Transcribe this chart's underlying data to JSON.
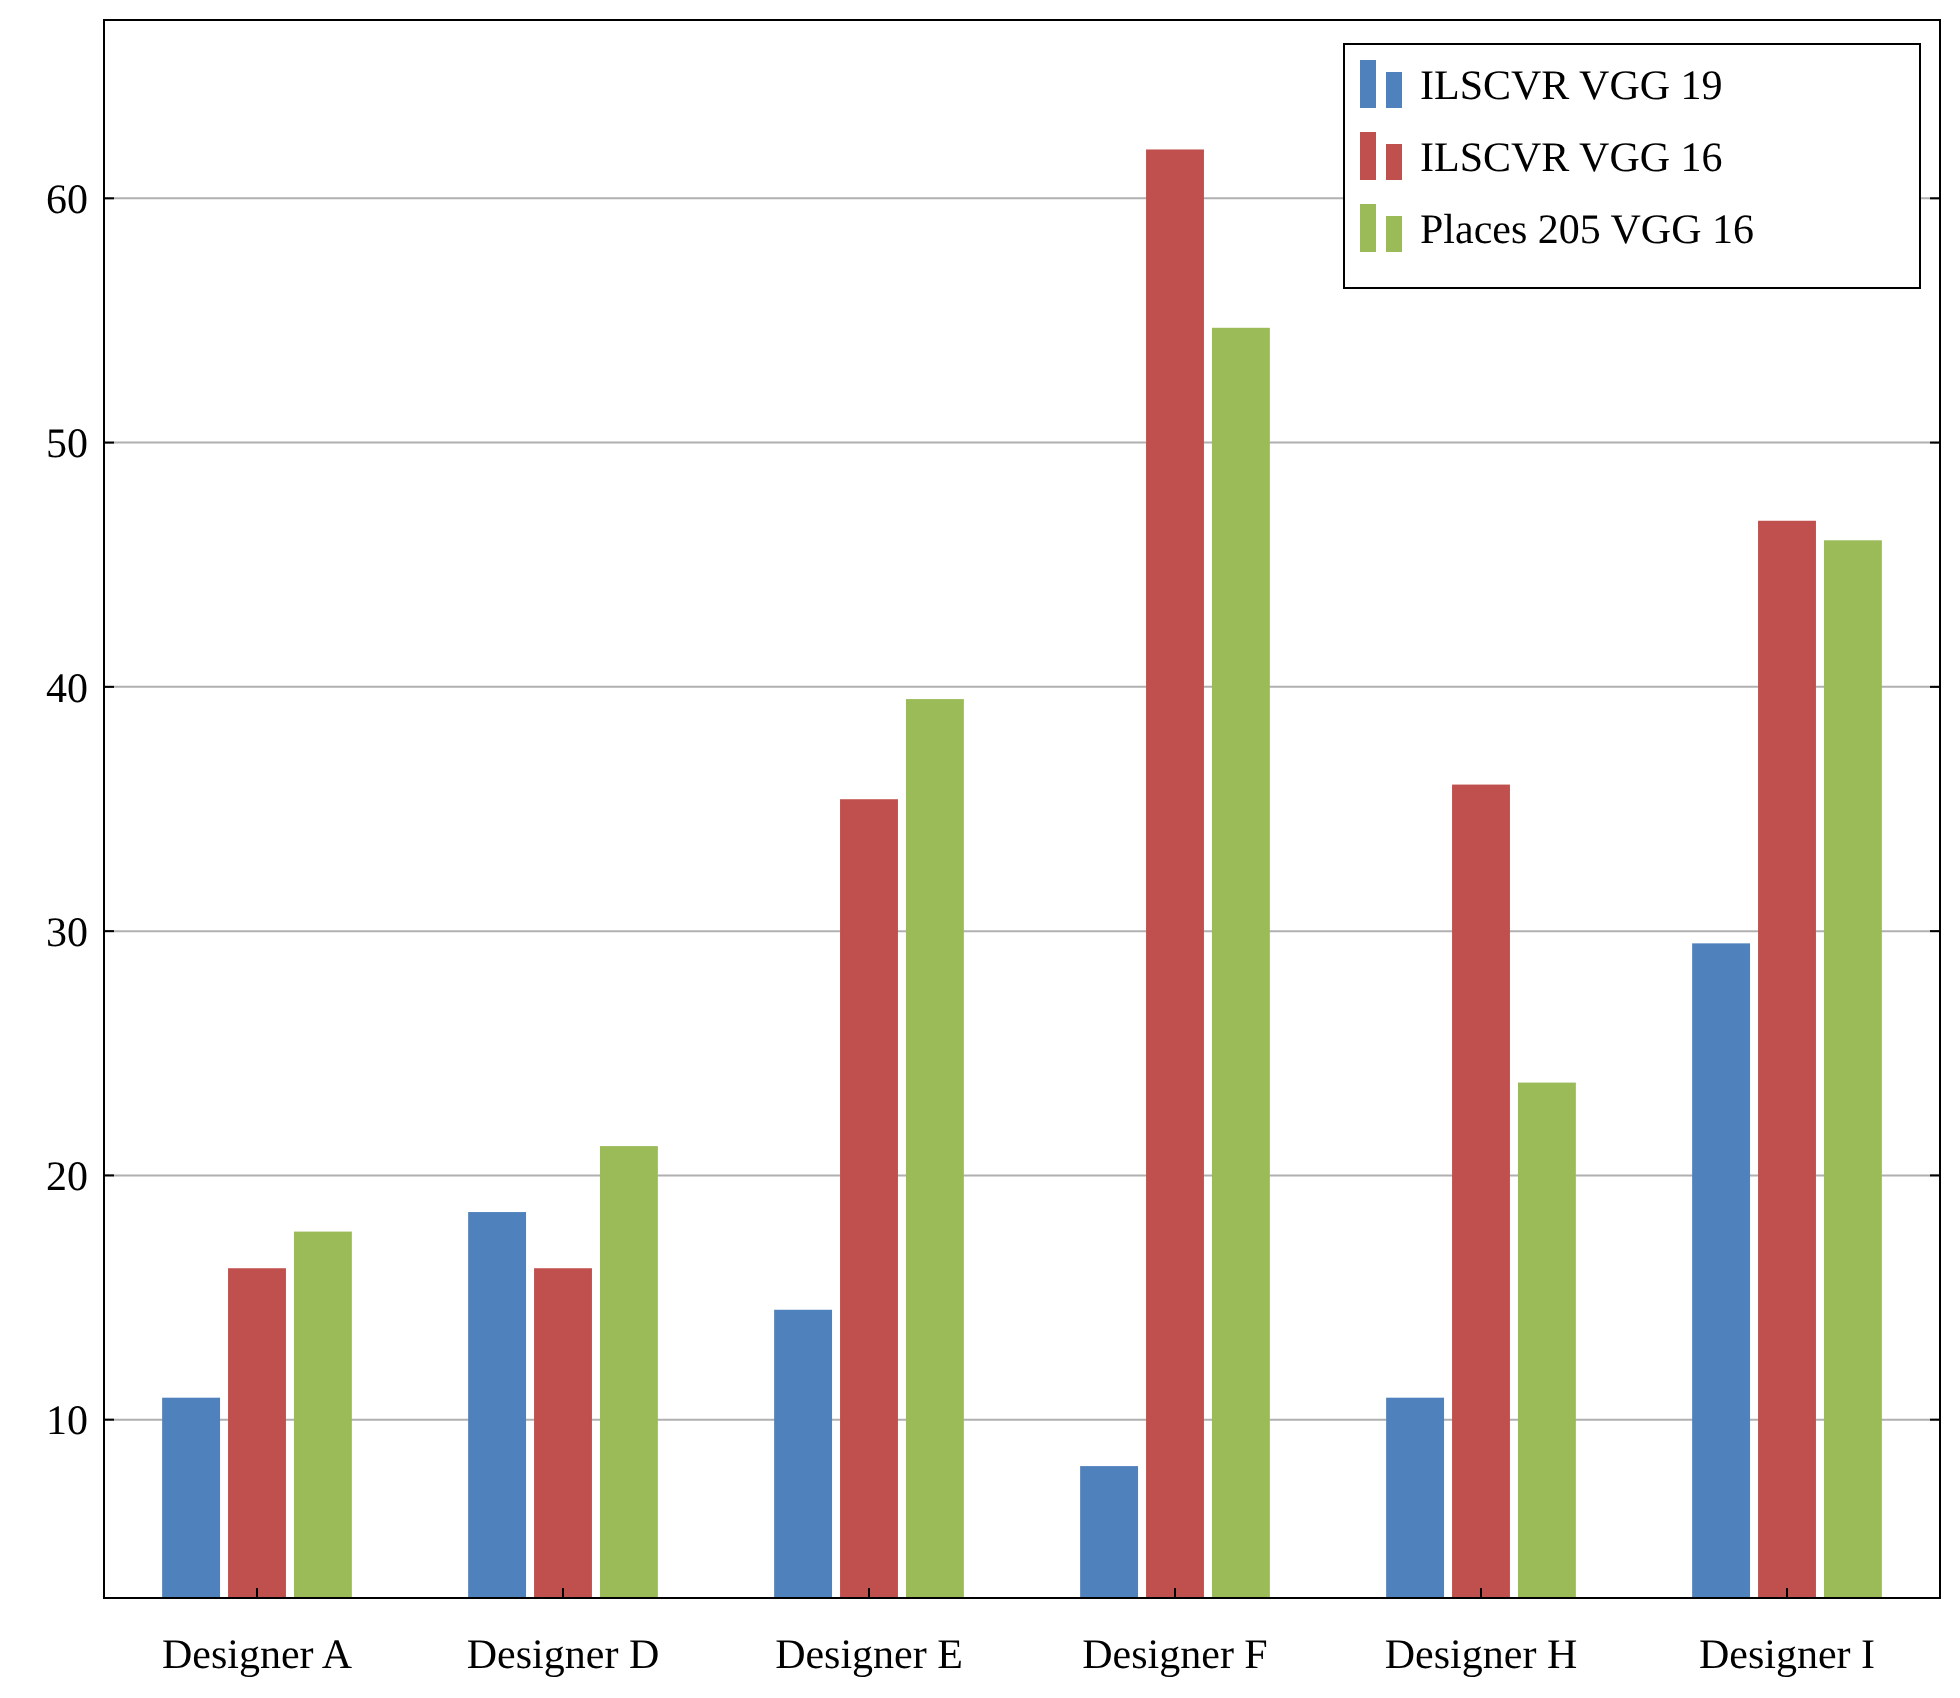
{
  "chart_data": {
    "type": "bar",
    "categories": [
      "Designer A",
      "Designer D",
      "Designer E",
      "Designer F",
      "Designer H",
      "Designer I"
    ],
    "series": [
      {
        "name": "ILSCVR VGG 19",
        "color": "#4f81bd",
        "values": [
          10.9,
          18.5,
          14.5,
          8.1,
          10.9,
          29.5
        ]
      },
      {
        "name": "ILSCVR VGG 16",
        "color": "#c0504d",
        "values": [
          16.2,
          16.2,
          35.4,
          62,
          36,
          46.8
        ]
      },
      {
        "name": "Places 205 VGG 16",
        "color": "#9bbb59",
        "values": [
          17.7,
          21.2,
          39.5,
          54.7,
          23.8,
          46
        ]
      }
    ],
    "ylim": [
      2.7,
      67.3
    ],
    "yticks": [
      10,
      20,
      30,
      40,
      50,
      60
    ],
    "grid": "y",
    "legend": "top right"
  }
}
